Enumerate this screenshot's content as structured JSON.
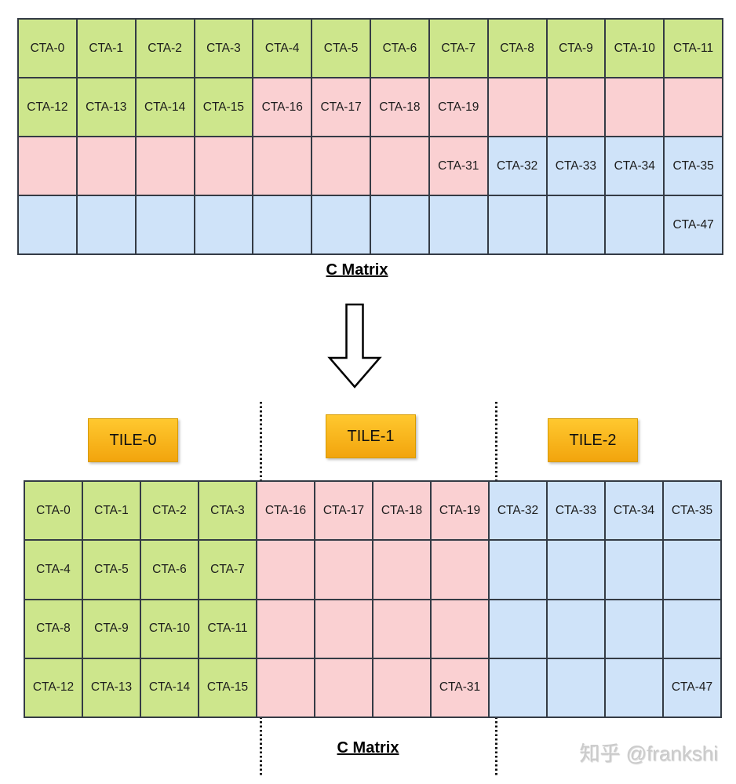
{
  "colors": {
    "green": "#cde68c",
    "pink": "#fad0d2",
    "blue": "#cfe3f9",
    "grid_border": "#343b45",
    "tile_fill_top": "#ffc82f",
    "tile_fill_bottom": "#f2a40d",
    "tile_border": "#d79b00",
    "arrow_fill": "#ffffff",
    "arrow_stroke": "#000000"
  },
  "top_matrix": {
    "label": "C Matrix",
    "rows": 4,
    "cols": 12,
    "cells": [
      [
        "CTA-0",
        "green"
      ],
      [
        "CTA-1",
        "green"
      ],
      [
        "CTA-2",
        "green"
      ],
      [
        "CTA-3",
        "green"
      ],
      [
        "CTA-4",
        "green"
      ],
      [
        "CTA-5",
        "green"
      ],
      [
        "CTA-6",
        "green"
      ],
      [
        "CTA-7",
        "green"
      ],
      [
        "CTA-8",
        "green"
      ],
      [
        "CTA-9",
        "green"
      ],
      [
        "CTA-10",
        "green"
      ],
      [
        "CTA-11",
        "green"
      ],
      [
        "CTA-12",
        "green"
      ],
      [
        "CTA-13",
        "green"
      ],
      [
        "CTA-14",
        "green"
      ],
      [
        "CTA-15",
        "green"
      ],
      [
        "CTA-16",
        "pink"
      ],
      [
        "CTA-17",
        "pink"
      ],
      [
        "CTA-18",
        "pink"
      ],
      [
        "CTA-19",
        "pink"
      ],
      [
        "",
        "pink"
      ],
      [
        "",
        "pink"
      ],
      [
        "",
        "pink"
      ],
      [
        "",
        "pink"
      ],
      [
        "",
        "pink"
      ],
      [
        "",
        "pink"
      ],
      [
        "",
        "pink"
      ],
      [
        "",
        "pink"
      ],
      [
        "",
        "pink"
      ],
      [
        "",
        "pink"
      ],
      [
        "",
        "pink"
      ],
      [
        "CTA-31",
        "pink"
      ],
      [
        "CTA-32",
        "blue"
      ],
      [
        "CTA-33",
        "blue"
      ],
      [
        "CTA-34",
        "blue"
      ],
      [
        "CTA-35",
        "blue"
      ],
      [
        "",
        "blue"
      ],
      [
        "",
        "blue"
      ],
      [
        "",
        "blue"
      ],
      [
        "",
        "blue"
      ],
      [
        "",
        "blue"
      ],
      [
        "",
        "blue"
      ],
      [
        "",
        "blue"
      ],
      [
        "",
        "blue"
      ],
      [
        "",
        "blue"
      ],
      [
        "",
        "blue"
      ],
      [
        "",
        "blue"
      ],
      [
        "CTA-47",
        "blue"
      ]
    ]
  },
  "arrow": {
    "direction": "down"
  },
  "tiles": [
    {
      "label": "TILE-0"
    },
    {
      "label": "TILE-1"
    },
    {
      "label": "TILE-2"
    }
  ],
  "bottom_matrix": {
    "label": "C Matrix",
    "rows": 4,
    "cols": 12,
    "cells": [
      [
        "CTA-0",
        "green"
      ],
      [
        "CTA-1",
        "green"
      ],
      [
        "CTA-2",
        "green"
      ],
      [
        "CTA-3",
        "green"
      ],
      [
        "CTA-16",
        "pink"
      ],
      [
        "CTA-17",
        "pink"
      ],
      [
        "CTA-18",
        "pink"
      ],
      [
        "CTA-19",
        "pink"
      ],
      [
        "CTA-32",
        "blue"
      ],
      [
        "CTA-33",
        "blue"
      ],
      [
        "CTA-34",
        "blue"
      ],
      [
        "CTA-35",
        "blue"
      ],
      [
        "CTA-4",
        "green"
      ],
      [
        "CTA-5",
        "green"
      ],
      [
        "CTA-6",
        "green"
      ],
      [
        "CTA-7",
        "green"
      ],
      [
        "",
        "pink"
      ],
      [
        "",
        "pink"
      ],
      [
        "",
        "pink"
      ],
      [
        "",
        "pink"
      ],
      [
        "",
        "blue"
      ],
      [
        "",
        "blue"
      ],
      [
        "",
        "blue"
      ],
      [
        "",
        "blue"
      ],
      [
        "CTA-8",
        "green"
      ],
      [
        "CTA-9",
        "green"
      ],
      [
        "CTA-10",
        "green"
      ],
      [
        "CTA-11",
        "green"
      ],
      [
        "",
        "pink"
      ],
      [
        "",
        "pink"
      ],
      [
        "",
        "pink"
      ],
      [
        "",
        "pink"
      ],
      [
        "",
        "blue"
      ],
      [
        "",
        "blue"
      ],
      [
        "",
        "blue"
      ],
      [
        "",
        "blue"
      ],
      [
        "CTA-12",
        "green"
      ],
      [
        "CTA-13",
        "green"
      ],
      [
        "CTA-14",
        "green"
      ],
      [
        "CTA-15",
        "green"
      ],
      [
        "",
        "pink"
      ],
      [
        "",
        "pink"
      ],
      [
        "",
        "pink"
      ],
      [
        "CTA-31",
        "pink"
      ],
      [
        "",
        "blue"
      ],
      [
        "",
        "blue"
      ],
      [
        "",
        "blue"
      ],
      [
        "CTA-47",
        "blue"
      ]
    ]
  },
  "watermark": "知乎 @frankshi"
}
